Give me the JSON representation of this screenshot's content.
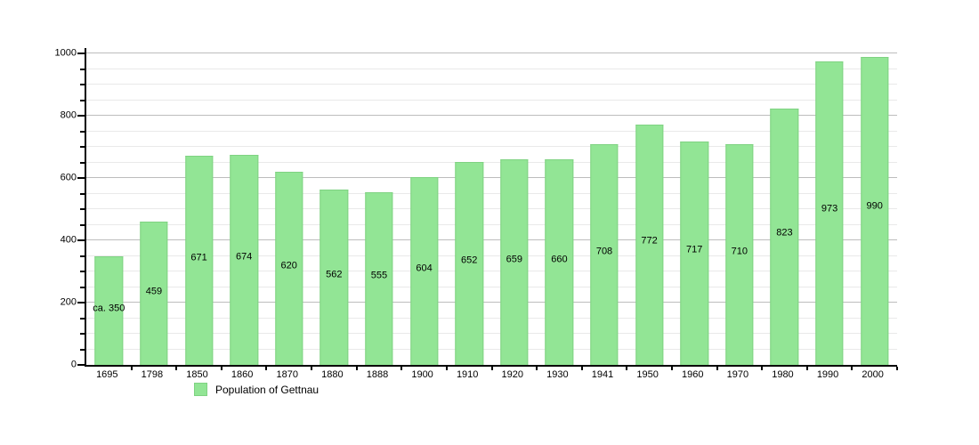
{
  "chart_data": {
    "type": "bar",
    "title": "",
    "categories": [
      "1695",
      "1798",
      "1850",
      "1860",
      "1870",
      "1880",
      "1888",
      "1900",
      "1910",
      "1920",
      "1930",
      "1941",
      "1950",
      "1960",
      "1970",
      "1980",
      "1990",
      "2000"
    ],
    "values": [
      350,
      459,
      671,
      674,
      620,
      562,
      555,
      604,
      652,
      659,
      660,
      708,
      772,
      717,
      710,
      823,
      973,
      990
    ],
    "bar_labels": [
      "ca. 350",
      "459",
      "671",
      "674",
      "620",
      "562",
      "555",
      "604",
      "652",
      "659",
      "660",
      "708",
      "772",
      "717",
      "710",
      "823",
      "973",
      "990"
    ],
    "xlabel": "",
    "ylabel": "",
    "ylim": [
      0,
      1000
    ],
    "y_major_step": 200,
    "y_minor_step": 50,
    "grid": "horizontal",
    "legend_position": "bottom-left",
    "legend": [
      {
        "label": "Population of Gettnau",
        "color": "#92e595"
      }
    ],
    "colors": {
      "bar_fill": "#92e595",
      "bar_border": "#7fd282",
      "grid_minor": "#e9e9e9",
      "grid_major": "#bdbdbd",
      "axis": "#000000",
      "text": "#000000"
    }
  }
}
